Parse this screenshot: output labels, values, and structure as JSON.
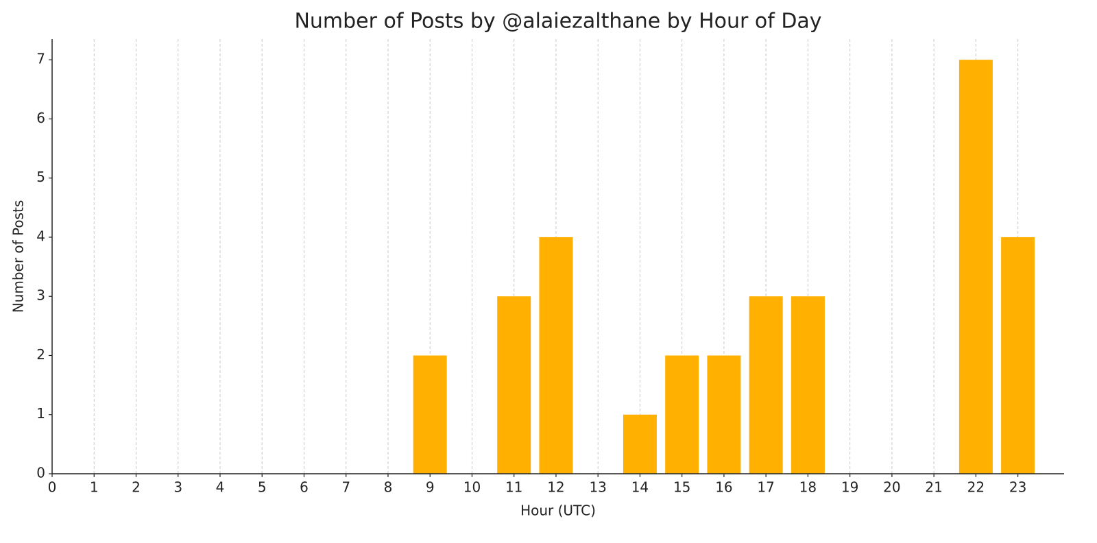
{
  "chart_data": {
    "type": "bar",
    "title": "Number of Posts by @alaiezalthane by Hour of Day",
    "x_label": "Hour (UTC)",
    "y_label": "Number of Posts",
    "x": [
      9,
      11,
      12,
      14,
      15,
      16,
      17,
      18,
      22,
      23
    ],
    "values": [
      2,
      3,
      4,
      1,
      2,
      2,
      3,
      3,
      7,
      4
    ],
    "color": "#ffb000",
    "xlim": [
      0,
      24.1
    ],
    "xticks": [
      0,
      1,
      2,
      3,
      4,
      5,
      6,
      7,
      8,
      9,
      10,
      11,
      12,
      13,
      14,
      15,
      16,
      17,
      18,
      19,
      20,
      21,
      22,
      23
    ],
    "ylim": [
      0,
      7.35
    ],
    "yticks": [
      0,
      1,
      2,
      3,
      4,
      5,
      6,
      7
    ],
    "grid": "x"
  }
}
